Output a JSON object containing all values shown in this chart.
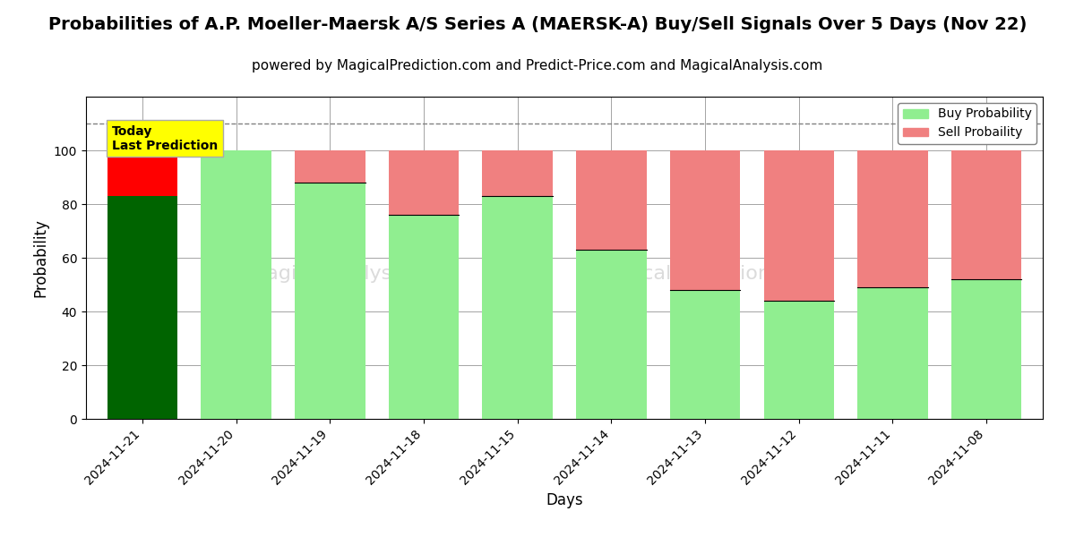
{
  "title": "Probabilities of A.P. Moeller-Maersk A/S Series A (MAERSK-A) Buy/Sell Signals Over 5 Days (Nov 22)",
  "subtitle": "powered by MagicalPrediction.com and Predict-Price.com and MagicalAnalysis.com",
  "xlabel": "Days",
  "ylabel": "Probability",
  "dates": [
    "2024-11-21",
    "2024-11-20",
    "2024-11-19",
    "2024-11-18",
    "2024-11-15",
    "2024-11-14",
    "2024-11-13",
    "2024-11-12",
    "2024-11-11",
    "2024-11-08"
  ],
  "buy_values": [
    83,
    100,
    88,
    76,
    83,
    63,
    48,
    44,
    49,
    52
  ],
  "sell_values": [
    17,
    0,
    12,
    24,
    17,
    37,
    52,
    56,
    51,
    48
  ],
  "ylim": [
    0,
    120
  ],
  "yticks": [
    0,
    20,
    40,
    60,
    80,
    100
  ],
  "dashed_line_y": 110,
  "bar_color_today_buy": "#006400",
  "bar_color_today_sell": "#ff0000",
  "bar_color_buy": "#90EE90",
  "bar_color_sell": "#F08080",
  "annotation_box_color": "#ffff00",
  "annotation_text": "Today\nLast Prediction",
  "legend_buy_label": "Buy Probability",
  "legend_sell_label": "Sell Probaility",
  "title_fontsize": 14,
  "subtitle_fontsize": 11,
  "axis_label_fontsize": 12,
  "bar_width": 0.75
}
